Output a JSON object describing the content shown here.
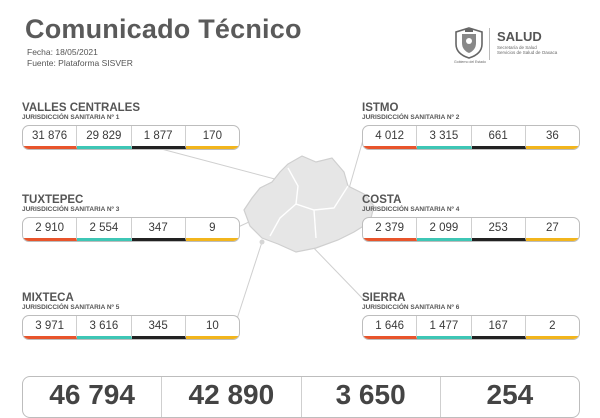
{
  "header": {
    "title": "Comunicado Técnico",
    "fecha": "Fecha: 18/05/2021",
    "fuente": "Fuente: Plataforma SISVER"
  },
  "logo": {
    "name": "SALUD",
    "line1": "Secretaría de Salud",
    "line2": "Servicios de Salud de Oaxaca",
    "seal_caption": "Gobierno del Estado"
  },
  "regions": [
    {
      "name": "VALLES CENTRALES",
      "sub": "JURISDICCIÓN SANITARIA Nº 1",
      "values": [
        "31 876",
        "29 829",
        "1 877",
        "170"
      ]
    },
    {
      "name": "ISTMO",
      "sub": "JURISDICCIÓN SANITARIA Nº 2",
      "values": [
        "4 012",
        "3 315",
        "661",
        "36"
      ]
    },
    {
      "name": "TUXTEPEC",
      "sub": "JURISDICCIÓN SANITARIA Nº 3",
      "values": [
        "2 910",
        "2 554",
        "347",
        "9"
      ]
    },
    {
      "name": "COSTA",
      "sub": "JURISDICCIÓN SANITARIA Nº 4",
      "values": [
        "2 379",
        "2 099",
        "253",
        "27"
      ]
    },
    {
      "name": "MIXTECA",
      "sub": "JURISDICCIÓN SANITARIA Nº 5",
      "values": [
        "3 971",
        "3 616",
        "345",
        "10"
      ]
    },
    {
      "name": "SIERRA",
      "sub": "JURISDICCIÓN SANITARIA Nº 6",
      "values": [
        "1 646",
        "1 477",
        "167",
        "2"
      ]
    }
  ],
  "totals": [
    "46 794",
    "42 890",
    "3 650",
    "254"
  ],
  "colors": {
    "c0": "#e8542b",
    "c1": "#3ec6b5",
    "c2": "#222222",
    "c3": "#f2b51c"
  }
}
